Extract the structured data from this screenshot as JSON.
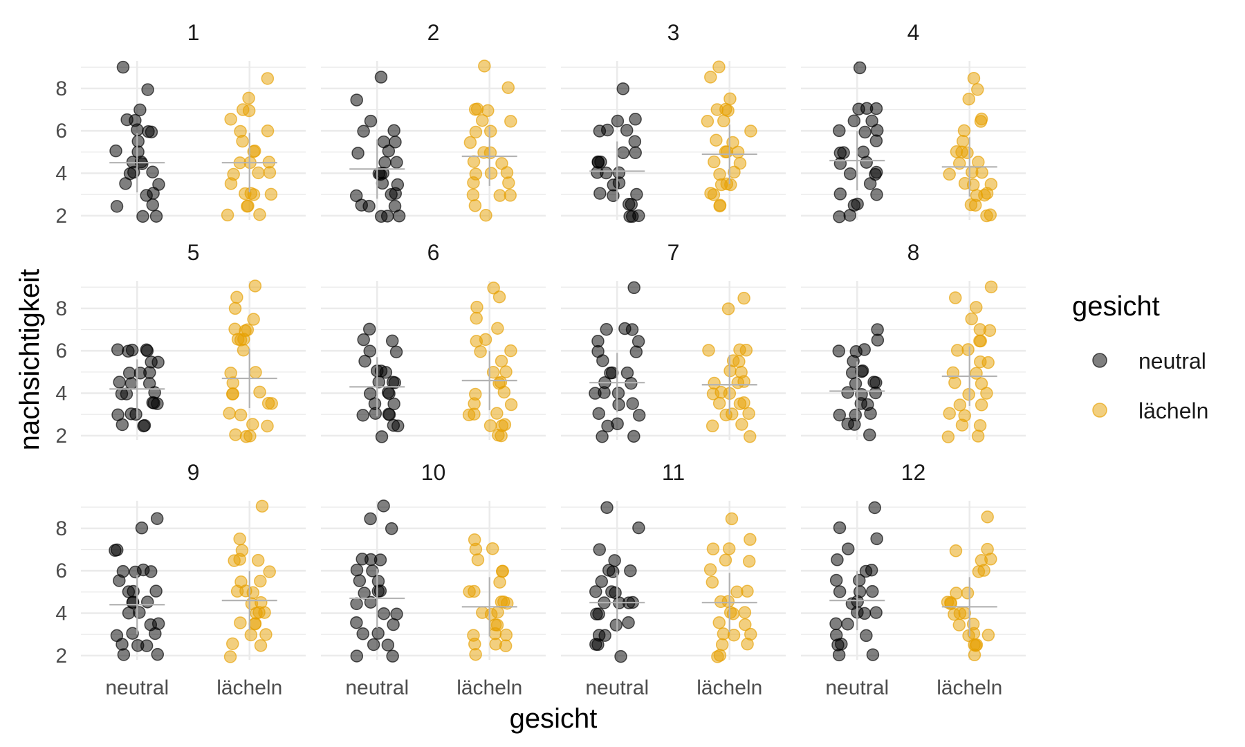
{
  "chart_data": {
    "type": "scatter",
    "facet_labels": [
      "1",
      "2",
      "3",
      "4",
      "5",
      "6",
      "7",
      "8",
      "9",
      "10",
      "11",
      "12"
    ],
    "categories": [
      "neutral",
      "lächeln"
    ],
    "xlabel": "gesicht",
    "ylabel": "nachsichtigkeit",
    "ylim": [
      1.8,
      9.3
    ],
    "yticks": [
      2,
      4,
      6,
      8
    ],
    "grid": true,
    "legend": {
      "title": "gesicht",
      "position": "right",
      "entries": [
        {
          "label": "neutral",
          "color": "#000000"
        },
        {
          "label": "lächeln",
          "color": "#E69F00"
        }
      ]
    },
    "colors": {
      "neutral": "#000000",
      "lächeln": "#E69F00",
      "summary": "#b3b3b3",
      "grid": "#ebebeb"
    },
    "facets": [
      {
        "label": "1",
        "neutral": {
          "mean": 4.5,
          "values": [
            9,
            8,
            7,
            6.5,
            6.5,
            6,
            6,
            6,
            5.5,
            5,
            5,
            4.5,
            4.5,
            4.5,
            4,
            4,
            4,
            3.5,
            3.5,
            3,
            3,
            2.5,
            2.5,
            2,
            2
          ]
        },
        "lächeln": {
          "mean": 4.5,
          "values": [
            8.5,
            7.5,
            7,
            7,
            6.5,
            6,
            6,
            5.5,
            5,
            5,
            4.5,
            4.5,
            4.5,
            4,
            4,
            4,
            3.5,
            3,
            3,
            3,
            3,
            2.5,
            2.5,
            2,
            2
          ]
        }
      },
      {
        "label": "2",
        "neutral": {
          "mean": 4.2,
          "values": [
            8.5,
            7.5,
            6.5,
            6,
            6,
            5.5,
            5.5,
            5,
            5,
            4.5,
            4.5,
            4,
            4,
            4,
            3.5,
            3.5,
            3,
            3,
            3,
            2.5,
            2.5,
            2.5,
            2,
            2,
            2
          ]
        },
        "lächeln": {
          "mean": 4.8,
          "values": [
            9,
            8,
            7,
            7,
            7,
            6.5,
            6.5,
            6,
            6,
            5.5,
            5,
            5,
            4.5,
            4.5,
            4,
            4,
            4,
            3.5,
            3.5,
            3,
            3,
            3,
            2.5,
            2
          ]
        }
      },
      {
        "label": "3",
        "neutral": {
          "mean": 4.1,
          "values": [
            8,
            6.5,
            6.5,
            6,
            6,
            6,
            5.5,
            5,
            5,
            4.5,
            4.5,
            4.5,
            4,
            4,
            4,
            3.5,
            3.5,
            3,
            3,
            3,
            2.5,
            2.5,
            2,
            2,
            2
          ]
        },
        "lächeln": {
          "mean": 4.9,
          "values": [
            9,
            8.5,
            7.5,
            7,
            7,
            7,
            6.5,
            6.5,
            6,
            5.5,
            5.5,
            5,
            5,
            5,
            4.5,
            4.5,
            4,
            4,
            3.5,
            3.5,
            3.5,
            3,
            3,
            2.5,
            2.5
          ]
        }
      },
      {
        "label": "4",
        "neutral": {
          "mean": 4.6,
          "values": [
            9,
            7,
            7,
            7,
            6.5,
            6.5,
            6,
            6,
            6,
            5.5,
            5,
            5,
            5,
            4.5,
            4.5,
            4,
            4,
            4,
            3.5,
            3,
            3,
            2.5,
            2.5,
            2,
            2
          ]
        },
        "lächeln": {
          "mean": 4.3,
          "values": [
            8.5,
            8,
            7.5,
            6.5,
            6.5,
            6,
            5.5,
            5,
            5,
            5,
            4.5,
            4.5,
            4,
            4,
            4,
            3.5,
            3.5,
            3.5,
            3,
            3,
            3,
            2.5,
            2.5,
            2,
            2
          ]
        }
      },
      {
        "label": "5",
        "neutral": {
          "mean": 4.2,
          "values": [
            6,
            6,
            6,
            6,
            6,
            5.5,
            5.5,
            5,
            5,
            5,
            4.5,
            4.5,
            4.5,
            4,
            4,
            4,
            3.5,
            3.5,
            3.5,
            3,
            3,
            3,
            2.5,
            2.5,
            2.5
          ]
        },
        "lächeln": {
          "mean": 4.7,
          "values": [
            9,
            8.5,
            8,
            7.5,
            7,
            7,
            7,
            6.5,
            6.5,
            6.5,
            6,
            5,
            5,
            4.5,
            4,
            4,
            4,
            3.5,
            3.5,
            3,
            3,
            2.5,
            2.5,
            2,
            2,
            2
          ]
        }
      },
      {
        "label": "6",
        "neutral": {
          "mean": 4.3,
          "values": [
            7,
            6.5,
            6.5,
            6,
            6,
            5.5,
            5,
            5,
            5,
            4.5,
            4.5,
            4.5,
            4,
            4,
            4,
            3.5,
            3.5,
            3,
            3,
            3,
            3,
            2.5,
            2.5,
            2
          ]
        },
        "lächeln": {
          "mean": 4.6,
          "values": [
            9,
            8.5,
            8,
            7.5,
            7,
            6.5,
            6.5,
            6,
            6,
            5.5,
            5,
            5,
            4.5,
            4.5,
            4,
            4,
            3.5,
            3.5,
            3,
            3,
            3,
            2.5,
            2.5,
            2.5,
            2,
            2
          ]
        }
      },
      {
        "label": "7",
        "neutral": {
          "mean": 4.5,
          "values": [
            9,
            7,
            7,
            7,
            6.5,
            6.5,
            6,
            6,
            5.5,
            5,
            5,
            5,
            4.5,
            4.5,
            4,
            4,
            4,
            3.5,
            3.5,
            3,
            3,
            2.5,
            2.5,
            2,
            2
          ]
        },
        "lächeln": {
          "mean": 4.4,
          "values": [
            8.5,
            8,
            6,
            6,
            6,
            5.5,
            5.5,
            5,
            5,
            4.5,
            4.5,
            4.5,
            4,
            4,
            4,
            3.5,
            3.5,
            3.5,
            3,
            3,
            3,
            2.5,
            2.5,
            2
          ]
        }
      },
      {
        "label": "8",
        "neutral": {
          "mean": 4.1,
          "values": [
            7,
            6.5,
            6,
            6,
            6,
            5.5,
            5,
            5,
            5,
            4.5,
            4.5,
            4.5,
            4,
            4,
            4,
            3.5,
            3.5,
            3,
            3,
            3,
            2.5,
            2.5,
            2
          ]
        },
        "lächeln": {
          "mean": 4.8,
          "values": [
            9,
            8.5,
            8,
            7.5,
            7,
            7,
            6.5,
            6.5,
            6,
            6,
            5.5,
            5.5,
            5,
            5,
            4.5,
            4.5,
            4,
            4,
            3.5,
            3.5,
            3,
            3,
            2.5,
            2.5,
            2,
            2
          ]
        }
      },
      {
        "label": "9",
        "neutral": {
          "mean": 4.4,
          "values": [
            8.5,
            8,
            7,
            7,
            6,
            6,
            6,
            6,
            5.5,
            5,
            5,
            5,
            4.5,
            4.5,
            4.5,
            4,
            4,
            3.5,
            3.5,
            3,
            3,
            3,
            2.5,
            2.5,
            2.5,
            2,
            2
          ]
        },
        "lächeln": {
          "mean": 4.6,
          "values": [
            9,
            7.5,
            7,
            6.5,
            6.5,
            6.5,
            6,
            5.5,
            5.5,
            5,
            5,
            5,
            4.5,
            4.5,
            4,
            4,
            4,
            3.5,
            3.5,
            3.5,
            3,
            3,
            2.5,
            2.5,
            2
          ]
        }
      },
      {
        "label": "10",
        "neutral": {
          "mean": 4.7,
          "values": [
            9,
            8.5,
            8,
            6.5,
            6.5,
            6.5,
            6,
            6,
            5.5,
            5.5,
            5,
            5,
            5,
            4.5,
            4.5,
            4,
            4,
            3.5,
            3.5,
            3,
            3,
            2.5,
            2.5,
            2,
            2
          ]
        },
        "lächeln": {
          "mean": 4.3,
          "values": [
            7.5,
            7,
            7,
            6.5,
            6,
            6,
            5.5,
            5,
            5,
            4.5,
            4.5,
            4.5,
            4,
            4,
            4,
            3.5,
            3.5,
            3,
            3,
            3,
            2.5,
            2.5,
            2.5,
            2
          ]
        }
      },
      {
        "label": "11",
        "neutral": {
          "mean": 4.5,
          "values": [
            9,
            8,
            7,
            6.5,
            6,
            6,
            6,
            5.5,
            5,
            5,
            5,
            4.5,
            4.5,
            4.5,
            4.5,
            4,
            4,
            3.5,
            3.5,
            3,
            3,
            2.5,
            2.5,
            2
          ]
        },
        "lächeln": {
          "mean": 4.5,
          "values": [
            8.5,
            7.5,
            7,
            7,
            6.5,
            6.5,
            6,
            5.5,
            5,
            5,
            4.5,
            4.5,
            4,
            4,
            4,
            3.5,
            3.5,
            3,
            3,
            3,
            2.5,
            2.5,
            2,
            2
          ]
        }
      },
      {
        "label": "12",
        "neutral": {
          "mean": 4.6,
          "values": [
            9,
            8,
            7.5,
            7,
            6.5,
            6,
            6,
            5.5,
            5.5,
            5,
            5,
            5,
            4.5,
            4.5,
            4,
            4,
            4,
            3.5,
            3.5,
            3,
            3,
            2.5,
            2.5,
            2,
            2
          ]
        },
        "lächeln": {
          "mean": 4.3,
          "values": [
            8.5,
            7,
            7,
            6.5,
            6.5,
            6,
            6,
            5,
            5,
            4.5,
            4.5,
            4.5,
            4,
            4,
            4,
            3.5,
            3.5,
            3,
            3,
            3,
            2.5,
            2.5,
            2.5,
            2
          ]
        }
      }
    ]
  }
}
